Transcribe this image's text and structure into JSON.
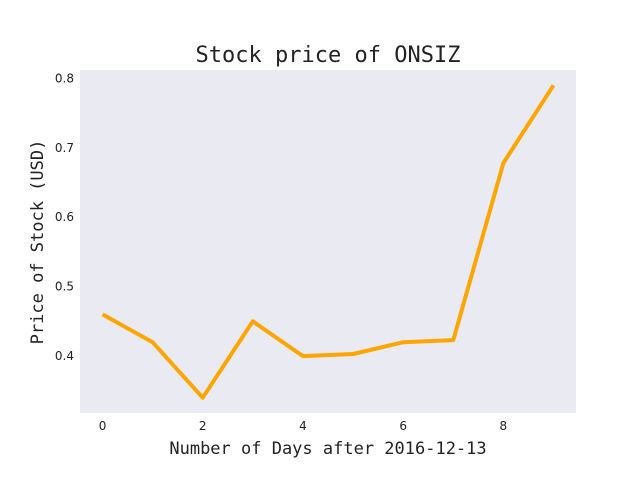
{
  "chart_data": {
    "type": "line",
    "title": "Stock price of ONSIZ",
    "xlabel": "Number of Days after 2016-12-13",
    "ylabel": "Price of Stock (USD)",
    "x": [
      0,
      1,
      2,
      3,
      4,
      5,
      6,
      7,
      8,
      9
    ],
    "series": [
      {
        "values": [
          0.46,
          0.42,
          0.34,
          0.45,
          0.4,
          0.403,
          0.42,
          0.423,
          0.678,
          0.79
        ]
      }
    ],
    "xlim": [
      -0.45,
      9.45
    ],
    "ylim": [
      0.318,
      0.812
    ],
    "xticks": [
      0,
      2,
      4,
      6,
      8
    ],
    "yticks": [
      0.4,
      0.5,
      0.6,
      0.7,
      0.8
    ],
    "grid": false,
    "colors": {
      "plot_background": "#eaeaf2",
      "line": "#ffa500"
    }
  }
}
